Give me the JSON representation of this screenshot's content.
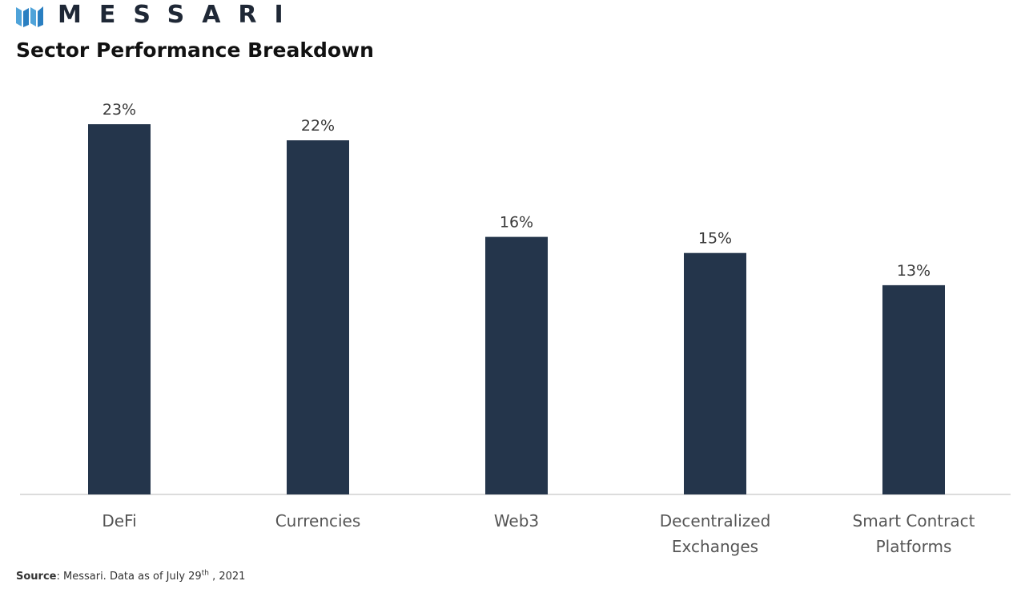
{
  "brand": {
    "name": "MESSARI",
    "logo_icon": "messari-logo-icon",
    "accent_color": "#2a7fc1"
  },
  "chart_data": {
    "type": "bar",
    "title": "Sector Performance Breakdown",
    "categories": [
      "DeFi",
      "Currencies",
      "Web3",
      "Decentralized Exchanges",
      "Smart Contract Platforms"
    ],
    "category_lines": [
      [
        "DeFi"
      ],
      [
        "Currencies"
      ],
      [
        "Web3"
      ],
      [
        "Decentralized",
        "Exchanges"
      ],
      [
        "Smart Contract",
        "Platforms"
      ]
    ],
    "values": [
      23,
      22,
      16,
      15,
      13
    ],
    "value_labels": [
      "23%",
      "22%",
      "16%",
      "15%",
      "13%"
    ],
    "unit": "%",
    "xlabel": "",
    "ylabel": "",
    "ylim": [
      0,
      23
    ],
    "grid": false,
    "legend": "none",
    "bar_color": "#24354b"
  },
  "source": {
    "label": "Source",
    "text_before": ": Messari. Data as of July 29",
    "superscript": "th",
    "text_after": " , 2021"
  }
}
